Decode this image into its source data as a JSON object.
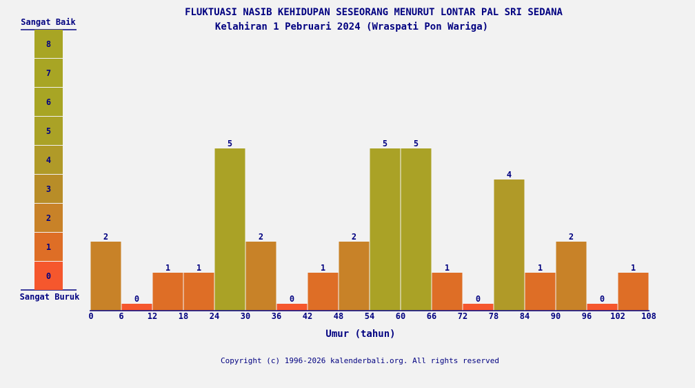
{
  "chart_data": {
    "type": "bar",
    "title": "FLUKTUASI NASIB KEHIDUPAN SESEORANG MENURUT LONTAR PAL SRI SEDANA",
    "subtitle": "Kelahiran 1 Pebruari 2024 (Wraspati Pon Wariga)",
    "xlabel": "Umur (tahun)",
    "ylabel": "",
    "x_ticks": [
      "0",
      "6",
      "12",
      "18",
      "24",
      "30",
      "36",
      "42",
      "48",
      "54",
      "60",
      "66",
      "72",
      "78",
      "84",
      "90",
      "96",
      "102",
      "108"
    ],
    "values": [
      2,
      0,
      1,
      1,
      5,
      2,
      0,
      1,
      2,
      5,
      5,
      1,
      0,
      4,
      1,
      2,
      0,
      1
    ],
    "ylim": [
      0,
      8
    ],
    "grid": false,
    "scale": {
      "top_label": "Sangat Baik",
      "bottom_label": "Sangat Buruk",
      "levels": [
        "0",
        "1",
        "2",
        "3",
        "4",
        "5",
        "6",
        "7",
        "8"
      ]
    },
    "level_colors": [
      "#f5572d",
      "#de6e26",
      "#c88228",
      "#b88d28",
      "#b09a28",
      "#aaa226",
      "#a8a524",
      "#a8a524",
      "#a8a524"
    ]
  },
  "footer": "Copyright (c) 1996-2026 kalenderbali.org. All rights reserved"
}
